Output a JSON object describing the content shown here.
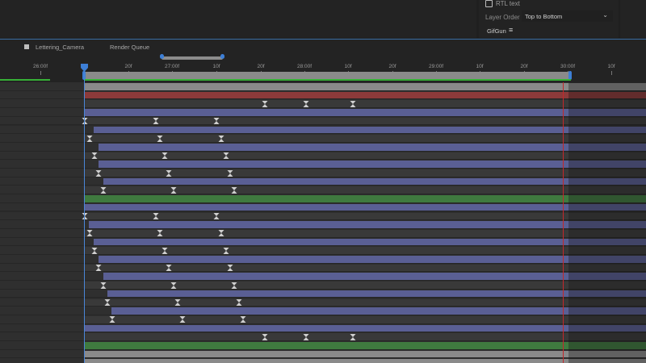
{
  "properties_panel": {
    "rtl_text_label": "RTL text",
    "layer_order_label": "Layer Order",
    "layer_order_value": "Top to Bottom",
    "gifgun_label": "GifGun",
    "gifgun_menu_icon": "hamburger-menu-icon"
  },
  "tabs": [
    {
      "label": "Lettering_Camera",
      "active": true
    },
    {
      "label": "Render Queue",
      "active": false
    }
  ],
  "ruler": {
    "ticks": [
      "26:00f",
      "20f",
      "27:00f",
      "10f",
      "20f",
      "28:00f",
      "10f",
      "20f",
      "29:00f",
      "10f",
      "20f",
      "30:00f",
      "10f"
    ]
  },
  "colors": {
    "accent": "#3d7fd6",
    "work_area_green": "#36b036",
    "end_marker_red": "#c4282a",
    "layer_red": "#8c3a3a",
    "layer_blue": "#5a5f94",
    "layer_green": "#3f7a3f",
    "layer_gray": "#8a8a8a"
  },
  "layers": [
    {
      "color": "gray",
      "keyframes": 0
    },
    {
      "color": "red",
      "keyframes": 0
    },
    {
      "color": "none",
      "keyframes": 3
    },
    {
      "color": "blue",
      "keyframes": 0
    },
    {
      "color": "none",
      "keyframes": 3
    },
    {
      "color": "blue",
      "keyframes": 0
    },
    {
      "color": "none",
      "keyframes": 3
    },
    {
      "color": "blue",
      "keyframes": 0
    },
    {
      "color": "none",
      "keyframes": 3
    },
    {
      "color": "blue",
      "keyframes": 0
    },
    {
      "color": "none",
      "keyframes": 3
    },
    {
      "color": "blue",
      "keyframes": 0
    },
    {
      "color": "none",
      "keyframes": 3
    },
    {
      "color": "green",
      "keyframes": 0
    },
    {
      "color": "blue",
      "keyframes": 0
    },
    {
      "color": "none",
      "keyframes": 3
    },
    {
      "color": "blue",
      "keyframes": 0
    },
    {
      "color": "none",
      "keyframes": 3
    },
    {
      "color": "blue",
      "keyframes": 0
    },
    {
      "color": "none",
      "keyframes": 3
    },
    {
      "color": "blue",
      "keyframes": 0
    },
    {
      "color": "none",
      "keyframes": 3
    },
    {
      "color": "blue",
      "keyframes": 0
    },
    {
      "color": "none",
      "keyframes": 3
    },
    {
      "color": "blue",
      "keyframes": 0
    },
    {
      "color": "none",
      "keyframes": 3
    },
    {
      "color": "blue",
      "keyframes": 0
    },
    {
      "color": "none",
      "keyframes": 3
    },
    {
      "color": "blue",
      "keyframes": 0
    },
    {
      "color": "none",
      "keyframes": 3
    },
    {
      "color": "green",
      "keyframes": 0
    },
    {
      "color": "gray",
      "keyframes": 0
    },
    {
      "color": "gray",
      "keyframes": 0
    }
  ]
}
